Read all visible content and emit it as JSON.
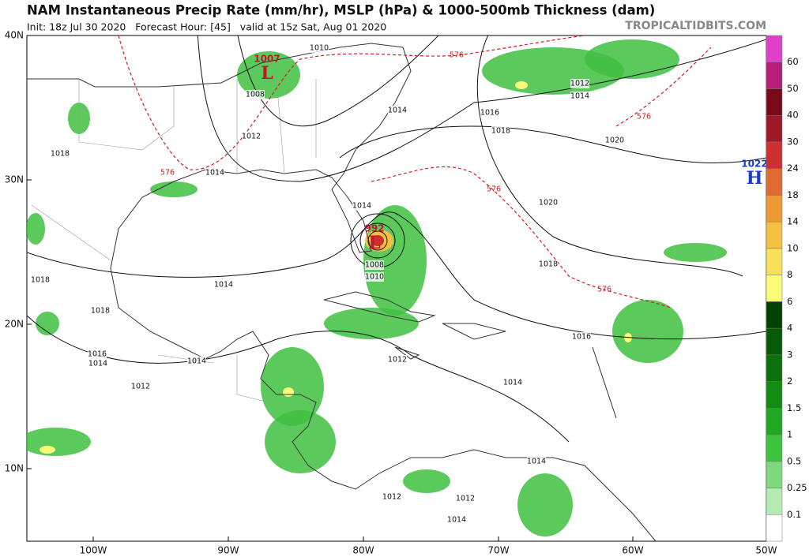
{
  "header": {
    "title": "NAM Instantaneous Precip Rate (mm/hr), MSLP (hPa) & 1000-500mb Thickness (dam)",
    "subtitle": "Init: 18z Jul 30 2020   Forecast Hour: [45]   valid at 15z Sat, Aug 01 2020",
    "watermark": "TROPICALTIDBITS.COM"
  },
  "map": {
    "lat_labels": [
      "40N",
      "30N",
      "20N",
      "10N"
    ],
    "lon_labels": [
      "100W",
      "90W",
      "80W",
      "70W",
      "60W",
      "50W"
    ],
    "centers": [
      {
        "pressure": "1007",
        "symbol": "L",
        "color": "#c0182a"
      },
      {
        "pressure": "992",
        "symbol": "L",
        "color": "#c0182a"
      },
      {
        "pressure": "1022",
        "symbol": "H",
        "color": "#1a3ccc"
      }
    ],
    "isobar_labels": [
      "1010",
      "1008",
      "1012",
      "1014",
      "1016",
      "1018",
      "1020",
      "1012",
      "1014",
      "1018",
      "1014",
      "1014",
      "1008",
      "1010",
      "1014",
      "1018",
      "1018",
      "1016",
      "1014",
      "1012",
      "1014",
      "1012",
      "1014",
      "1016",
      "1018",
      "1020",
      "1014",
      "1012",
      "1012",
      "1014"
    ],
    "thickness_labels": [
      "576",
      "576",
      "576",
      "576",
      "576"
    ]
  },
  "colorbar": {
    "labels": [
      0.1,
      0.25,
      0.5,
      1,
      1.5,
      2,
      3,
      4,
      6,
      8,
      10,
      14,
      18,
      24,
      30,
      40,
      50,
      60
    ],
    "colors": [
      "#ffffff",
      "#b4ecb4",
      "#7ed97e",
      "#3fc43f",
      "#22a822",
      "#138c13",
      "#0b720b",
      "#075a07",
      "#044204",
      "#fcfc7a",
      "#f9e05a",
      "#f4c040",
      "#ee9a34",
      "#e06a30",
      "#cc3030",
      "#a01828",
      "#780a1a",
      "#b81e78",
      "#e040c8"
    ]
  }
}
